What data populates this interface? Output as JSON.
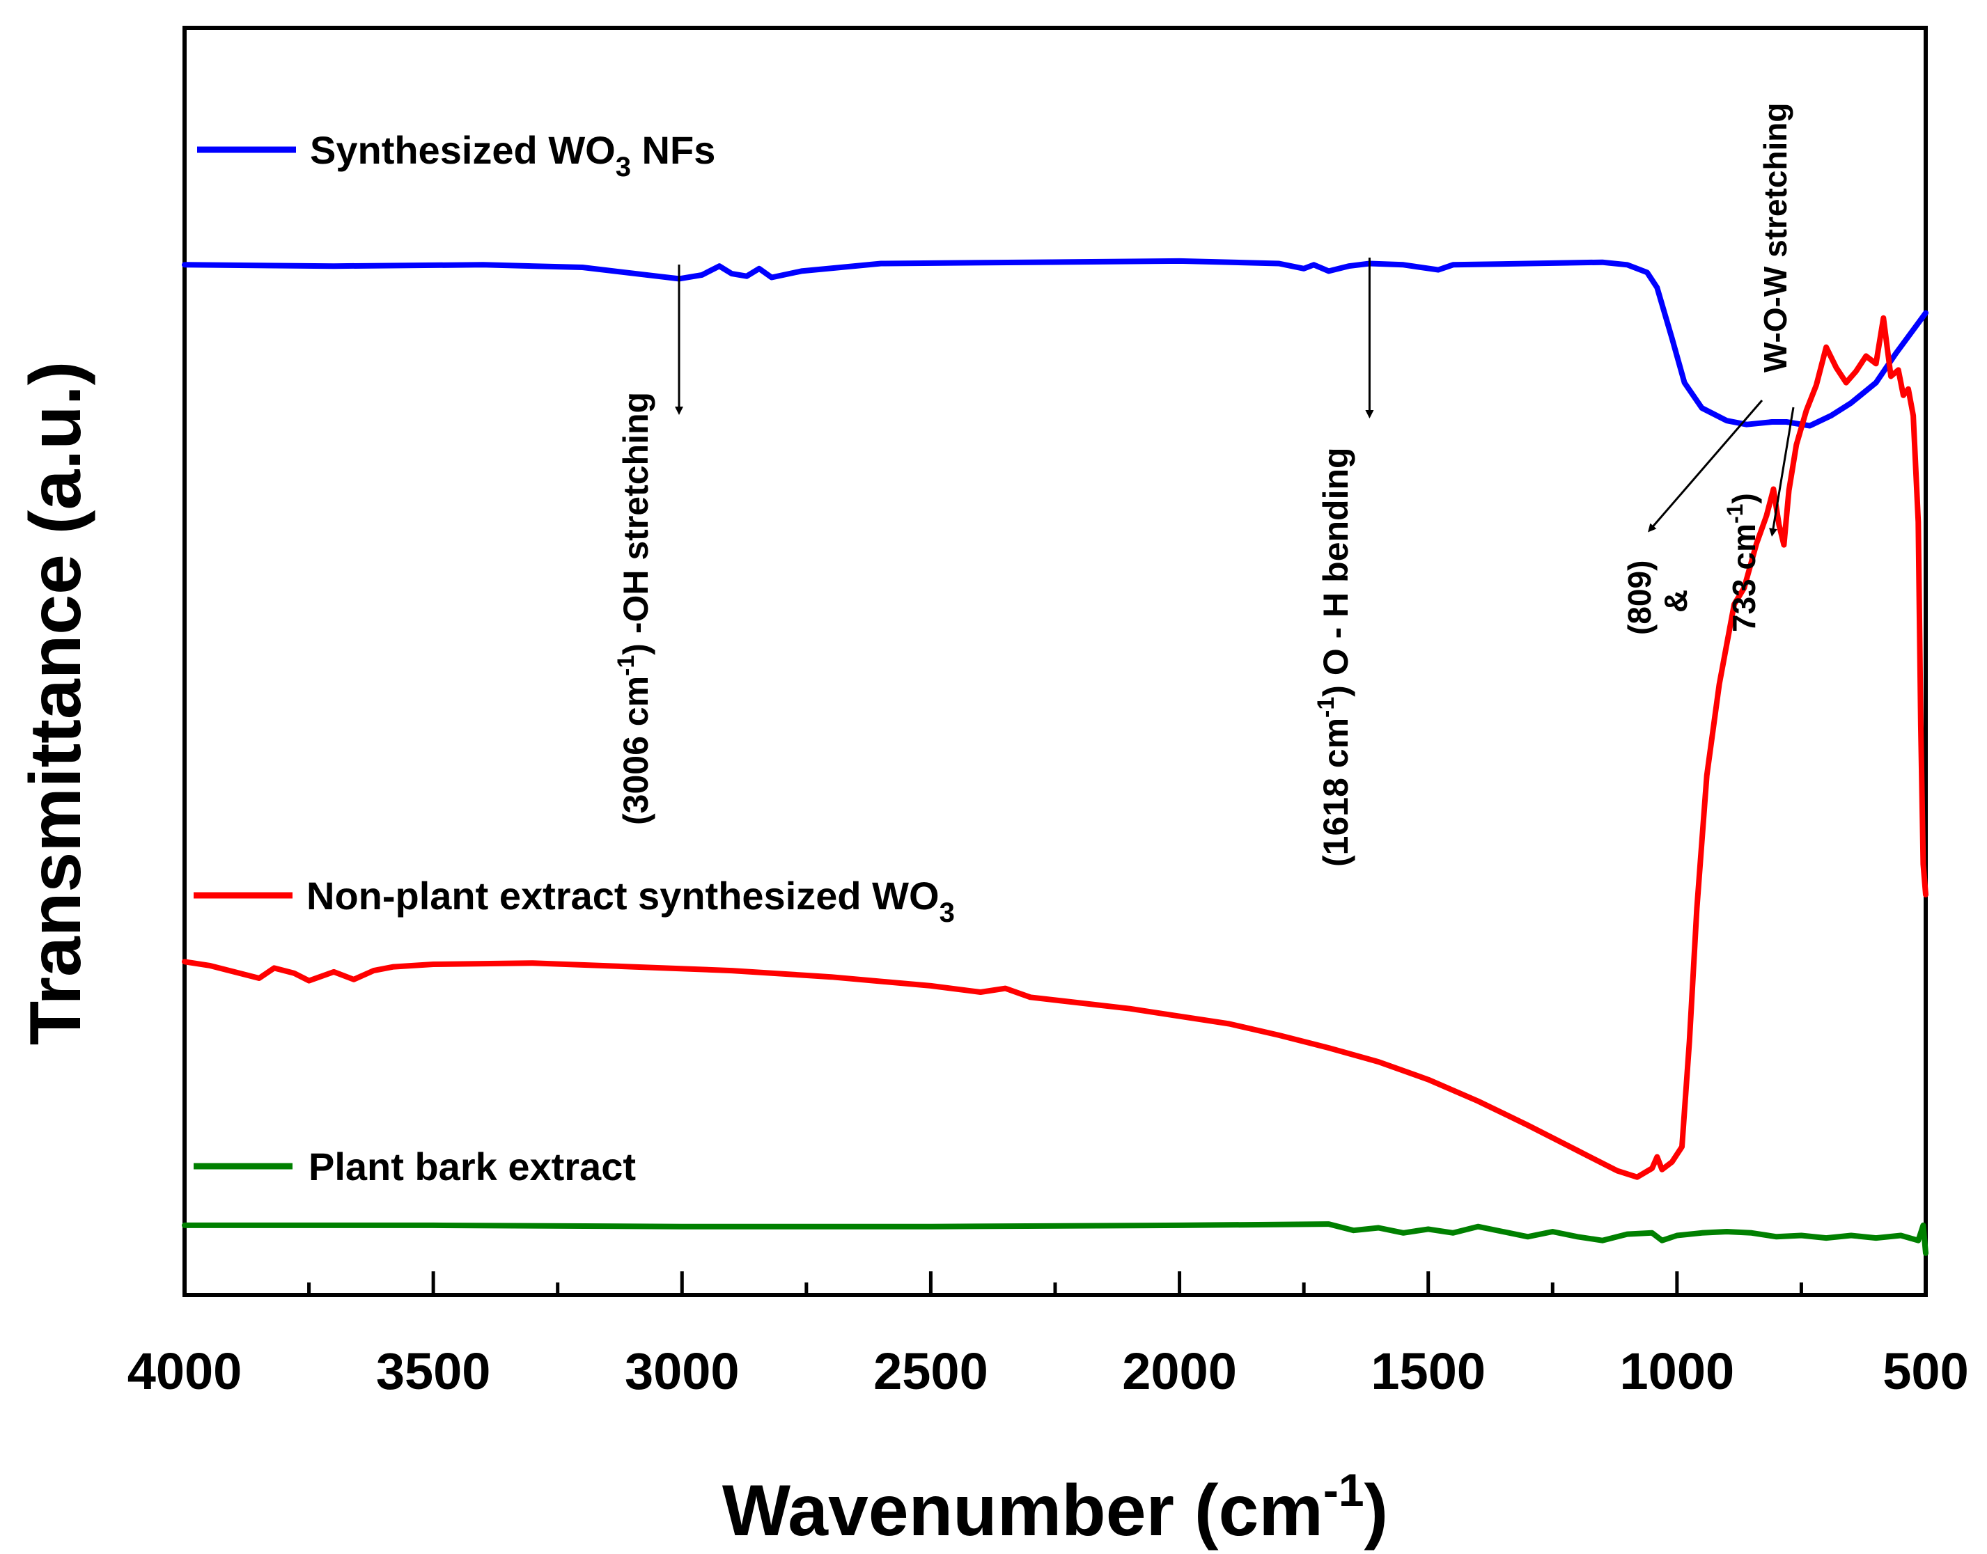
{
  "chart_data": {
    "type": "line",
    "title": "",
    "xlabel": "Wavenumber (cm",
    "xlabel_sup": "-1",
    "xlabel_suffix": ")",
    "ylabel": "Transmittance (a.u.)",
    "xlim": [
      4000,
      500
    ],
    "x_reversed": true,
    "ylim": [
      0,
      100
    ],
    "y_ticks_shown": false,
    "grid": false,
    "legend_position": "inline-left",
    "x_ticks": [
      "4000",
      "3500",
      "3000",
      "2500",
      "2000",
      "1500",
      "1000",
      "500"
    ],
    "series": [
      {
        "name": "Synthesized WO3 NFs",
        "legend_parts": {
          "before": "Synthesized WO",
          "sub": "3",
          "after": " NFs"
        },
        "color": "#0000ff",
        "baseline": 81.5,
        "points": [
          [
            4000,
            81.3
          ],
          [
            3700,
            81.2
          ],
          [
            3400,
            81.3
          ],
          [
            3200,
            81.1
          ],
          [
            3050,
            80.4
          ],
          [
            3006,
            80.2
          ],
          [
            2960,
            80.5
          ],
          [
            2925,
            81.2
          ],
          [
            2900,
            80.6
          ],
          [
            2870,
            80.4
          ],
          [
            2845,
            81.0
          ],
          [
            2820,
            80.3
          ],
          [
            2760,
            80.8
          ],
          [
            2600,
            81.4
          ],
          [
            2300,
            81.5
          ],
          [
            2000,
            81.6
          ],
          [
            1800,
            81.4
          ],
          [
            1750,
            81.0
          ],
          [
            1730,
            81.3
          ],
          [
            1700,
            80.8
          ],
          [
            1660,
            81.2
          ],
          [
            1618,
            81.4
          ],
          [
            1550,
            81.3
          ],
          [
            1480,
            80.9
          ],
          [
            1450,
            81.3
          ],
          [
            1300,
            81.4
          ],
          [
            1150,
            81.5
          ],
          [
            1100,
            81.3
          ],
          [
            1060,
            80.7
          ],
          [
            1040,
            79.5
          ],
          [
            1010,
            75.5
          ],
          [
            985,
            72.0
          ],
          [
            950,
            70.0
          ],
          [
            900,
            69.0
          ],
          [
            860,
            68.7
          ],
          [
            809,
            68.9
          ],
          [
            780,
            68.9
          ],
          [
            733,
            68.6
          ],
          [
            690,
            69.4
          ],
          [
            650,
            70.4
          ],
          [
            600,
            72.0
          ],
          [
            560,
            74.3
          ],
          [
            500,
            77.5
          ]
        ]
      },
      {
        "name": "Non-plant extract synthesized WO3",
        "legend_parts": {
          "before": "Non-plant extract synthesized WO",
          "sub": "3",
          "after": ""
        },
        "color": "#ff0000",
        "points": [
          [
            4000,
            26.3
          ],
          [
            3950,
            26.0
          ],
          [
            3900,
            25.5
          ],
          [
            3850,
            25.0
          ],
          [
            3820,
            25.8
          ],
          [
            3780,
            25.4
          ],
          [
            3750,
            24.8
          ],
          [
            3700,
            25.5
          ],
          [
            3660,
            24.9
          ],
          [
            3620,
            25.6
          ],
          [
            3580,
            25.9
          ],
          [
            3500,
            26.1
          ],
          [
            3300,
            26.2
          ],
          [
            3100,
            25.9
          ],
          [
            2900,
            25.6
          ],
          [
            2700,
            25.1
          ],
          [
            2500,
            24.4
          ],
          [
            2400,
            23.9
          ],
          [
            2350,
            24.2
          ],
          [
            2300,
            23.5
          ],
          [
            2100,
            22.6
          ],
          [
            1900,
            21.4
          ],
          [
            1800,
            20.5
          ],
          [
            1700,
            19.5
          ],
          [
            1600,
            18.4
          ],
          [
            1500,
            17.0
          ],
          [
            1400,
            15.3
          ],
          [
            1300,
            13.4
          ],
          [
            1200,
            11.4
          ],
          [
            1120,
            9.8
          ],
          [
            1080,
            9.3
          ],
          [
            1050,
            10.0
          ],
          [
            1040,
            10.9
          ],
          [
            1030,
            9.9
          ],
          [
            1010,
            10.5
          ],
          [
            990,
            11.7
          ],
          [
            975,
            20.0
          ],
          [
            960,
            30.5
          ],
          [
            940,
            41.0
          ],
          [
            915,
            48.2
          ],
          [
            885,
            54.5
          ],
          [
            865,
            55.8
          ],
          [
            840,
            59.3
          ],
          [
            820,
            61.5
          ],
          [
            806,
            63.6
          ],
          [
            795,
            60.8
          ],
          [
            785,
            59.2
          ],
          [
            775,
            63.5
          ],
          [
            760,
            67.1
          ],
          [
            740,
            69.8
          ],
          [
            720,
            71.8
          ],
          [
            700,
            74.8
          ],
          [
            680,
            73.2
          ],
          [
            660,
            72.0
          ],
          [
            640,
            72.9
          ],
          [
            620,
            74.1
          ],
          [
            600,
            73.5
          ],
          [
            585,
            77.1
          ],
          [
            570,
            72.5
          ],
          [
            555,
            73.0
          ],
          [
            545,
            71.0
          ],
          [
            535,
            71.5
          ],
          [
            525,
            69.4
          ],
          [
            515,
            61.0
          ],
          [
            510,
            45.0
          ],
          [
            505,
            34.0
          ],
          [
            500,
            31.6
          ]
        ]
      },
      {
        "name": "Plant bark extract",
        "legend_parts": {
          "before": "Plant bark extract",
          "sub": "",
          "after": ""
        },
        "color": "#008000",
        "points": [
          [
            4000,
            5.5
          ],
          [
            3500,
            5.5
          ],
          [
            3000,
            5.4
          ],
          [
            2500,
            5.4
          ],
          [
            2000,
            5.5
          ],
          [
            1700,
            5.6
          ],
          [
            1650,
            5.1
          ],
          [
            1600,
            5.3
          ],
          [
            1550,
            4.9
          ],
          [
            1500,
            5.2
          ],
          [
            1450,
            4.9
          ],
          [
            1400,
            5.4
          ],
          [
            1350,
            5.0
          ],
          [
            1300,
            4.6
          ],
          [
            1250,
            5.0
          ],
          [
            1200,
            4.6
          ],
          [
            1150,
            4.3
          ],
          [
            1100,
            4.8
          ],
          [
            1050,
            4.9
          ],
          [
            1030,
            4.3
          ],
          [
            1000,
            4.7
          ],
          [
            950,
            4.9
          ],
          [
            900,
            5.0
          ],
          [
            850,
            4.9
          ],
          [
            800,
            4.6
          ],
          [
            750,
            4.7
          ],
          [
            700,
            4.5
          ],
          [
            650,
            4.7
          ],
          [
            600,
            4.5
          ],
          [
            550,
            4.7
          ],
          [
            515,
            4.3
          ],
          [
            505,
            5.5
          ],
          [
            500,
            3.3
          ]
        ]
      }
    ],
    "annotations": [
      {
        "id": "oh-stretch",
        "before": "(3006 cm",
        "sup": "-1",
        "after": ") -OH stretching",
        "arrow_x": 3006
      },
      {
        "id": "oh-bend",
        "before": "(1618 cm",
        "sup": "-1",
        "after": ")  O - H bending",
        "arrow_x": 1618
      },
      {
        "id": "wow-stretch",
        "text": "W-O-W  stretching"
      },
      {
        "id": "wow-809",
        "text": "(809)",
        "arrow_x": 809
      },
      {
        "id": "wow-amp",
        "text": "&"
      },
      {
        "id": "wow-733",
        "before": "733 cm",
        "sup": "-1",
        "after": ")",
        "arrow_x": 733
      }
    ]
  }
}
